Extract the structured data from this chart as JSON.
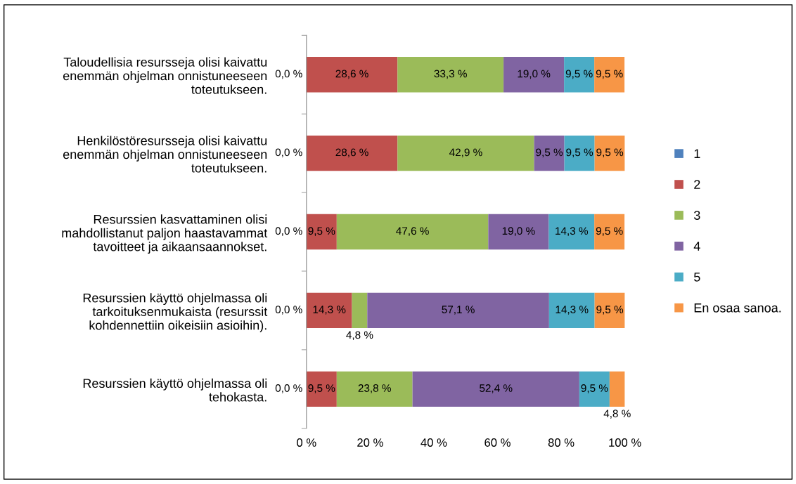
{
  "chart_data": {
    "type": "bar",
    "orientation": "horizontal",
    "stacked": true,
    "categories": [
      "Taloudellisia resursseja olisi kaivattu\nenemmän ohjelman onnistuneeseen\ntoteutukseen.",
      "Henkilöstöresursseja olisi kaivattu\nenemmän ohjelman onnistuneeseen\ntoteutukseen.",
      "Resurssien kasvattaminen olisi\nmahdollistanut paljon haastavammat\ntavoitteet ja aikaansaannokset.",
      "Resurssien käyttö ohjelmassa oli\ntarkoituksenmukaista (resurssit\nkohdennettiin oikeisiin asioihin).",
      "Resurssien käyttö ohjelmassa oli\ntehokasta."
    ],
    "series": [
      {
        "name": "1",
        "color": "#4f81bd",
        "values": [
          0.0,
          0.0,
          0.0,
          0.0,
          0.0
        ],
        "value_labels": [
          "0,0 %",
          "0,0 %",
          "0,0 %",
          "0,0 %",
          "0,0 %"
        ]
      },
      {
        "name": "2",
        "color": "#c0504d",
        "values": [
          28.6,
          28.6,
          9.5,
          14.3,
          9.5
        ],
        "value_labels": [
          "28,6 %",
          "28,6 %",
          "9,5 %",
          "14,3 %",
          "9,5 %"
        ]
      },
      {
        "name": "3",
        "color": "#9bbb59",
        "values": [
          33.3,
          42.9,
          47.6,
          4.8,
          23.8
        ],
        "value_labels": [
          "33,3 %",
          "42,9 %",
          "47,6 %",
          "4,8 %",
          "23,8 %"
        ]
      },
      {
        "name": "4",
        "color": "#8064a2",
        "values": [
          19.0,
          9.5,
          19.0,
          57.1,
          52.4
        ],
        "value_labels": [
          "19,0 %",
          "9,5 %",
          "19,0 %",
          "57,1 %",
          "52,4 %"
        ]
      },
      {
        "name": "5",
        "color": "#4bacc6",
        "values": [
          9.5,
          9.5,
          14.3,
          14.3,
          9.5
        ],
        "value_labels": [
          "9,5 %",
          "9,5 %",
          "14,3 %",
          "14,3 %",
          "9,5 %"
        ]
      },
      {
        "name": "En osaa sanoa.",
        "color": "#f79646",
        "values": [
          9.5,
          9.5,
          9.5,
          9.5,
          4.8
        ],
        "value_labels": [
          "9,5 %",
          "9,5 %",
          "9,5 %",
          "9,5 %",
          "4,8 %"
        ]
      }
    ],
    "xlim": [
      0,
      100
    ],
    "xticks": [
      {
        "value": 0,
        "label": "0 %"
      },
      {
        "value": 20,
        "label": "20 %"
      },
      {
        "value": 40,
        "label": "40 %"
      },
      {
        "value": 60,
        "label": "60 %"
      },
      {
        "value": 80,
        "label": "80 %"
      },
      {
        "value": 100,
        "label": "100 %"
      }
    ],
    "grid": false,
    "legend": "right"
  }
}
